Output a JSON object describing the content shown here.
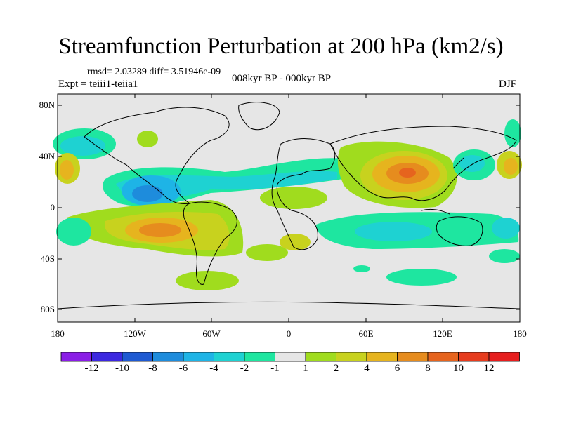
{
  "title": "Streamfunction Perturbation at 200 hPa (km2/s)",
  "stats": "rmsd= 2.03289 diff= 3.51946e-09",
  "experiment": "Expt = teiii1-teiia1",
  "period": "008kyr BP - 000kyr BP",
  "season": "DJF",
  "lat_ticks": [
    "80N",
    "40N",
    "0",
    "40S",
    "80S"
  ],
  "lon_ticks": [
    "180",
    "120W",
    "60W",
    "0",
    "60E",
    "120E",
    "180"
  ],
  "colorbar": {
    "labels": [
      "-12",
      "-10",
      "-8",
      "-6",
      "-4",
      "-2",
      "-1",
      "1",
      "2",
      "4",
      "6",
      "8",
      "10",
      "12"
    ],
    "colors": [
      "#8a1ee6",
      "#3c28e0",
      "#1e5ad2",
      "#1e8cdc",
      "#1eb4e6",
      "#1ed2d2",
      "#1ee6a0",
      "#e6e6e6",
      "#a0dc1e",
      "#c8d21e",
      "#e6b41e",
      "#e68c1e",
      "#e6641e",
      "#e63c1e",
      "#e61e1e"
    ]
  }
}
